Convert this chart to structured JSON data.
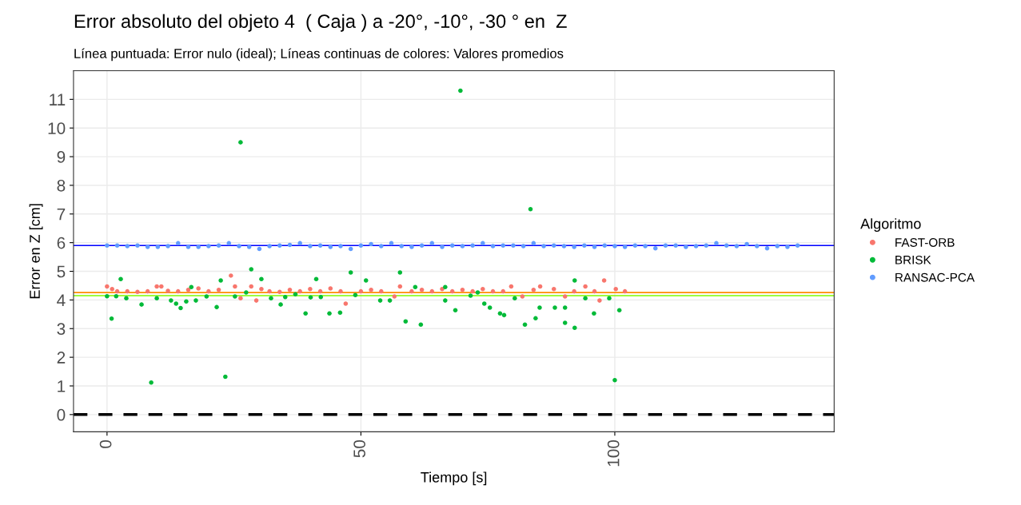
{
  "chart_data": {
    "type": "scatter",
    "title": "Error absoluto del objeto 4  ( Caja ) a -20°, -10°, -30 ° en  Z",
    "subtitle": "Línea puntuada: Error nulo (ideal); Líneas continuas de colores: Valores promedios",
    "xlabel": "Tiempo [s]",
    "ylabel": "Error en Z [cm]",
    "legend_title": "Algoritmo",
    "xlim": [
      -6.6,
      143.2
    ],
    "ylim": [
      -0.6,
      12.0
    ],
    "xticks": [
      0,
      50,
      100
    ],
    "yticks": [
      0,
      1,
      2,
      3,
      4,
      5,
      6,
      7,
      8,
      9,
      10,
      11
    ],
    "grid": true,
    "legend": "right",
    "marker": "circle",
    "series": [
      {
        "name": "FAST-ORB",
        "color": "#f8766d",
        "x": [
          0,
          1,
          2,
          4,
          6,
          8,
          9.8,
          10.7,
          12,
          14,
          16,
          18,
          20,
          22,
          24.4,
          25.2,
          26.3,
          28.4,
          29.4,
          30.4,
          32,
          34,
          36,
          38,
          40,
          42,
          44,
          46,
          47,
          50,
          52,
          54,
          56.6,
          57.7,
          60,
          62,
          64,
          66,
          68,
          70,
          72,
          74,
          76,
          78,
          79.6,
          81.8,
          84,
          85.3,
          88,
          90.2,
          92,
          94.2,
          96,
          97,
          97.9,
          100.2,
          102
        ],
        "values": [
          4.47,
          4.38,
          4.3,
          4.3,
          4.28,
          4.3,
          4.47,
          4.47,
          4.32,
          4.3,
          4.35,
          4.4,
          4.3,
          4.35,
          4.85,
          4.47,
          4.06,
          4.47,
          3.98,
          4.38,
          4.3,
          4.28,
          4.35,
          4.3,
          4.38,
          4.3,
          4.4,
          4.3,
          3.87,
          4.3,
          4.35,
          4.3,
          4.12,
          4.47,
          4.3,
          4.35,
          4.3,
          4.38,
          4.3,
          4.35,
          4.3,
          4.38,
          4.3,
          4.3,
          4.47,
          4.12,
          4.35,
          4.47,
          4.38,
          4.12,
          4.3,
          4.47,
          4.3,
          3.98,
          4.68,
          4.38,
          4.3
        ]
      },
      {
        "name": "BRISK",
        "color": "#00ba38",
        "x": [
          0,
          0.9,
          1.8,
          2.7,
          3.8,
          6.8,
          8.7,
          9.8,
          12.6,
          13.6,
          14.5,
          15.6,
          16.6,
          17.5,
          19.6,
          21.6,
          22.4,
          23.3,
          25.2,
          26.3,
          27.4,
          28.4,
          30.4,
          32.3,
          34.2,
          35.1,
          37.1,
          39.1,
          40.1,
          41.2,
          42.1,
          43.8,
          45.9,
          48.0,
          48.9,
          51,
          53.8,
          55.7,
          57.7,
          58.8,
          60.7,
          61.8,
          66.6,
          66.6,
          68.6,
          69.6,
          71.6,
          73,
          74.3,
          75.4,
          77.4,
          78.2,
          80.3,
          82.3,
          83.4,
          84.4,
          85.2,
          88.2,
          90.2,
          90.2,
          92.1,
          92.1,
          94.2,
          95.9,
          98.9,
          100,
          100.9
        ],
        "values": [
          4.13,
          3.35,
          4.13,
          4.73,
          4.06,
          3.84,
          1.12,
          4.06,
          3.98,
          3.87,
          3.72,
          3.95,
          4.45,
          3.98,
          4.12,
          3.75,
          4.68,
          1.32,
          4.12,
          9.5,
          4.26,
          5.07,
          4.73,
          4.06,
          3.84,
          4.1,
          4.2,
          3.53,
          4.09,
          4.73,
          4.1,
          3.53,
          3.56,
          4.96,
          4.17,
          4.68,
          3.98,
          3.98,
          4.96,
          3.25,
          4.45,
          3.14,
          4.45,
          3.98,
          3.64,
          11.3,
          4.15,
          4.26,
          3.87,
          3.73,
          3.53,
          3.47,
          4.06,
          3.14,
          7.17,
          3.36,
          3.73,
          3.73,
          3.73,
          3.2,
          4.68,
          3.03,
          4.06,
          3.53,
          4.06,
          1.2,
          3.64
        ]
      },
      {
        "name": "RANSAC-PCA",
        "color": "#619cff",
        "x": [
          0,
          2,
          4,
          6,
          8,
          10,
          12,
          14,
          16,
          18,
          20,
          22,
          24,
          26,
          28,
          30,
          32,
          34,
          36,
          38,
          40,
          42,
          44,
          46,
          48,
          50,
          52,
          54,
          56,
          58,
          60,
          62,
          64,
          66,
          68,
          70,
          72,
          74,
          76,
          78,
          80,
          82,
          84,
          86,
          88,
          90,
          92,
          94,
          96,
          98,
          100,
          102,
          104,
          106,
          108,
          110,
          112,
          114,
          116,
          118,
          120,
          122,
          124,
          126,
          128,
          130,
          132,
          134,
          136
        ],
        "values": [
          5.9,
          5.9,
          5.88,
          5.9,
          5.85,
          5.85,
          5.88,
          5.98,
          5.85,
          5.85,
          5.88,
          5.9,
          5.98,
          5.88,
          5.85,
          5.78,
          5.88,
          5.9,
          5.92,
          5.98,
          5.88,
          5.9,
          5.85,
          5.88,
          5.78,
          5.9,
          5.95,
          5.88,
          5.98,
          5.88,
          5.85,
          5.9,
          5.98,
          5.85,
          5.9,
          5.88,
          5.9,
          5.98,
          5.88,
          5.9,
          5.9,
          5.88,
          5.98,
          5.88,
          5.9,
          5.88,
          5.85,
          5.9,
          5.85,
          5.9,
          5.88,
          5.85,
          5.9,
          5.88,
          5.8,
          5.9,
          5.9,
          5.85,
          5.88,
          5.9,
          5.98,
          5.9,
          5.88,
          5.95,
          5.88,
          5.8,
          5.88,
          5.85,
          5.9
        ]
      }
    ],
    "ref_lines": [
      {
        "axis": "y",
        "value": 0,
        "color": "#000000",
        "line_style": "dashed"
      },
      {
        "axis": "y",
        "value": 5.9,
        "color": "#0000ff",
        "line_style": "solid"
      },
      {
        "axis": "y",
        "value": 4.26,
        "color": "#ff8c00",
        "line_style": "solid"
      },
      {
        "axis": "y",
        "value": 4.15,
        "color": "#7cfc00",
        "line_style": "solid"
      }
    ]
  }
}
